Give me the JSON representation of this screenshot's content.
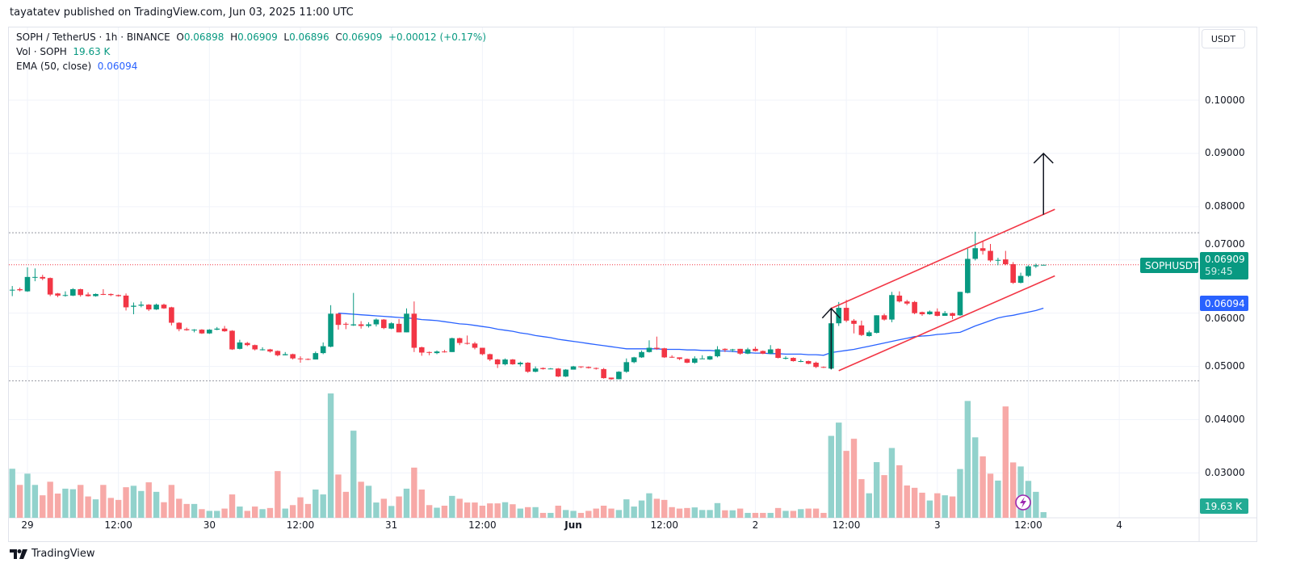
{
  "header": {
    "publisher_line": "tayatatev published on TradingView.com, Jun 03, 2025 11:00 UTC"
  },
  "legend": {
    "symbol": "SOPH / TetherUS · 1h · BINANCE",
    "o_label": "O",
    "o": "0.06898",
    "h_label": "H",
    "h": "0.06909",
    "l_label": "L",
    "l": "0.06896",
    "c_label": "C",
    "c": "0.06909",
    "change": "+0.00012 (+0.17%)",
    "vol_label": "Vol · SOPH",
    "vol": "19.63 K",
    "ema_label": "EMA (50, close)",
    "ema": "0.06094"
  },
  "currency_button": "USDT",
  "tags": {
    "symbol": "SOPHUSDT",
    "last_price": "0.06909",
    "countdown": "59:45",
    "ema_value": "0.06094",
    "volume": "19.63 K"
  },
  "footer": {
    "logo_text": "TradingView"
  },
  "colors": {
    "up": "#089981",
    "down": "#f23645",
    "volume_up": "#92d2cc",
    "volume_down": "#f7a9a7",
    "ema": "#2962ff",
    "channel": "#f23645",
    "arrow": "#131722",
    "level_line": "#9598a1",
    "price_line": "#f23645",
    "grid": "#f0f3fa",
    "alert_icon": "#9c27b0"
  },
  "chart_data": {
    "type": "candlestick",
    "interval": "1h",
    "x_ticks": [
      "29",
      "12:00",
      "30",
      "12:00",
      "31",
      "12:00",
      "Jun",
      "12:00",
      "2",
      "12:00",
      "3",
      "12:00",
      "4"
    ],
    "y_ticks": [
      "0.10000",
      "0.09000",
      "0.08000",
      "0.07000",
      "0.06000",
      "0.05000",
      "0.04000",
      "0.03000"
    ],
    "y_tick_values": [
      0.1,
      0.09,
      0.08,
      0.07,
      0.06,
      0.05,
      0.04,
      0.03
    ],
    "ylim": [
      0.025,
      0.105
    ],
    "grid": true,
    "ohlc": [
      [
        0.0643,
        0.0651,
        0.0632,
        0.0644
      ],
      [
        0.0645,
        0.0648,
        0.0641,
        0.0643
      ],
      [
        0.0641,
        0.0686,
        0.064,
        0.0668
      ],
      [
        0.0667,
        0.0684,
        0.066,
        0.0668
      ],
      [
        0.0668,
        0.0672,
        0.0662,
        0.0665
      ],
      [
        0.0666,
        0.0667,
        0.0632,
        0.0635
      ],
      [
        0.0637,
        0.0638,
        0.063,
        0.0633
      ],
      [
        0.0633,
        0.0641,
        0.0631,
        0.0634
      ],
      [
        0.0633,
        0.0647,
        0.0632,
        0.0645
      ],
      [
        0.0645,
        0.0646,
        0.0631,
        0.0634
      ],
      [
        0.0635,
        0.0639,
        0.0631,
        0.0632
      ],
      [
        0.0632,
        0.0637,
        0.0631,
        0.0636
      ],
      [
        0.0636,
        0.0645,
        0.0634,
        0.0635
      ],
      [
        0.0636,
        0.0637,
        0.0632,
        0.0634
      ],
      [
        0.0634,
        0.0635,
        0.0631,
        0.0632
      ],
      [
        0.0633,
        0.0637,
        0.0605,
        0.0611
      ],
      [
        0.0612,
        0.062,
        0.0598,
        0.0614
      ],
      [
        0.0614,
        0.0622,
        0.0611,
        0.0616
      ],
      [
        0.0616,
        0.0617,
        0.0604,
        0.0607
      ],
      [
        0.0607,
        0.0618,
        0.0606,
        0.0616
      ],
      [
        0.0616,
        0.0618,
        0.0608,
        0.0609
      ],
      [
        0.0611,
        0.0612,
        0.0577,
        0.0582
      ],
      [
        0.0582,
        0.0583,
        0.0566,
        0.057
      ],
      [
        0.057,
        0.0573,
        0.0567,
        0.0568
      ],
      [
        0.0568,
        0.057,
        0.0564,
        0.0569
      ],
      [
        0.0569,
        0.057,
        0.0561,
        0.0562
      ],
      [
        0.0562,
        0.057,
        0.0561,
        0.0569
      ],
      [
        0.0569,
        0.0574,
        0.0568,
        0.0571
      ],
      [
        0.0571,
        0.0576,
        0.0565,
        0.0566
      ],
      [
        0.0567,
        0.0568,
        0.0531,
        0.0532
      ],
      [
        0.0533,
        0.055,
        0.0532,
        0.0545
      ],
      [
        0.0544,
        0.0546,
        0.0538,
        0.054
      ],
      [
        0.054,
        0.0541,
        0.053,
        0.0532
      ],
      [
        0.0531,
        0.0536,
        0.053,
        0.0532
      ],
      [
        0.0532,
        0.0533,
        0.0526,
        0.0528
      ],
      [
        0.0529,
        0.053,
        0.0519,
        0.0521
      ],
      [
        0.0521,
        0.0527,
        0.0521,
        0.0523
      ],
      [
        0.0523,
        0.0524,
        0.0513,
        0.0515
      ],
      [
        0.0515,
        0.0519,
        0.0507,
        0.0514
      ],
      [
        0.0514,
        0.0515,
        0.0512,
        0.0513
      ],
      [
        0.0513,
        0.0528,
        0.0513,
        0.0525
      ],
      [
        0.0525,
        0.0545,
        0.0523,
        0.0538
      ],
      [
        0.0537,
        0.0615,
        0.0536,
        0.0599
      ],
      [
        0.0599,
        0.06,
        0.0569,
        0.0578
      ],
      [
        0.058,
        0.0583,
        0.057,
        0.0579
      ],
      [
        0.0577,
        0.0638,
        0.0576,
        0.0579
      ],
      [
        0.0579,
        0.0585,
        0.0571,
        0.0576
      ],
      [
        0.0576,
        0.0583,
        0.0573,
        0.0579
      ],
      [
        0.0579,
        0.059,
        0.0575,
        0.0588
      ],
      [
        0.0588,
        0.0589,
        0.057,
        0.0572
      ],
      [
        0.0571,
        0.0583,
        0.057,
        0.0581
      ],
      [
        0.058,
        0.0589,
        0.0564,
        0.0564
      ],
      [
        0.0564,
        0.0609,
        0.0564,
        0.0599
      ],
      [
        0.0599,
        0.0622,
        0.0527,
        0.0535
      ],
      [
        0.0536,
        0.0537,
        0.052,
        0.0526
      ],
      [
        0.0527,
        0.0528,
        0.0521,
        0.0526
      ],
      [
        0.0525,
        0.053,
        0.0523,
        0.0528
      ],
      [
        0.0528,
        0.0531,
        0.0526,
        0.0527
      ],
      [
        0.0527,
        0.0554,
        0.0527,
        0.0553
      ],
      [
        0.0553,
        0.0554,
        0.054,
        0.0544
      ],
      [
        0.0544,
        0.0558,
        0.0541,
        0.0543
      ],
      [
        0.0543,
        0.0546,
        0.0532,
        0.0535
      ],
      [
        0.0535,
        0.0535,
        0.0521,
        0.0523
      ],
      [
        0.0523,
        0.0524,
        0.051,
        0.0513
      ],
      [
        0.0513,
        0.0514,
        0.0497,
        0.0504
      ],
      [
        0.0504,
        0.0515,
        0.0502,
        0.0513
      ],
      [
        0.0513,
        0.0514,
        0.0503,
        0.0504
      ],
      [
        0.0504,
        0.0509,
        0.05,
        0.0507
      ],
      [
        0.0507,
        0.0508,
        0.0488,
        0.049
      ],
      [
        0.049,
        0.05,
        0.0489,
        0.0496
      ],
      [
        0.0497,
        0.0498,
        0.0494,
        0.0495
      ],
      [
        0.0495,
        0.0497,
        0.0495,
        0.0496
      ],
      [
        0.0496,
        0.0497,
        0.048,
        0.0481
      ],
      [
        0.0481,
        0.0495,
        0.048,
        0.0494
      ],
      [
        0.0494,
        0.0501,
        0.0494,
        0.05
      ],
      [
        0.05,
        0.05,
        0.0497,
        0.0499
      ],
      [
        0.0499,
        0.05,
        0.0496,
        0.0497
      ],
      [
        0.0497,
        0.0498,
        0.0494,
        0.0496
      ],
      [
        0.0495,
        0.0497,
        0.0477,
        0.0478
      ],
      [
        0.0479,
        0.0479,
        0.0475,
        0.0476
      ],
      [
        0.0476,
        0.0491,
        0.0476,
        0.049
      ],
      [
        0.049,
        0.0515,
        0.0488,
        0.0508
      ],
      [
        0.0508,
        0.0518,
        0.0506,
        0.0517
      ],
      [
        0.0517,
        0.053,
        0.0516,
        0.0527
      ],
      [
        0.0527,
        0.0549,
        0.0526,
        0.0535
      ],
      [
        0.0535,
        0.0556,
        0.0531,
        0.0533
      ],
      [
        0.0534,
        0.0535,
        0.0516,
        0.0517
      ],
      [
        0.0518,
        0.0521,
        0.0516,
        0.0517
      ],
      [
        0.0517,
        0.0517,
        0.0512,
        0.0514
      ],
      [
        0.0514,
        0.0515,
        0.0506,
        0.0507
      ],
      [
        0.0507,
        0.0519,
        0.0505,
        0.0515
      ],
      [
        0.0515,
        0.0521,
        0.0514,
        0.0515
      ],
      [
        0.0513,
        0.052,
        0.0512,
        0.0519
      ],
      [
        0.0519,
        0.0538,
        0.0517,
        0.0532
      ],
      [
        0.0533,
        0.0534,
        0.0527,
        0.0531
      ],
      [
        0.0531,
        0.0533,
        0.0527,
        0.0532
      ],
      [
        0.0533,
        0.0533,
        0.0522,
        0.0524
      ],
      [
        0.0524,
        0.0535,
        0.0523,
        0.0532
      ],
      [
        0.0533,
        0.0537,
        0.0528,
        0.0529
      ],
      [
        0.0529,
        0.053,
        0.0523,
        0.0524
      ],
      [
        0.0524,
        0.054,
        0.0523,
        0.0532
      ],
      [
        0.0533,
        0.0534,
        0.0515,
        0.0516
      ],
      [
        0.0516,
        0.0519,
        0.0513,
        0.0516
      ],
      [
        0.0516,
        0.0517,
        0.0509,
        0.051
      ],
      [
        0.051,
        0.0513,
        0.0508,
        0.051
      ],
      [
        0.051,
        0.0511,
        0.0504,
        0.0505
      ],
      [
        0.0507,
        0.0509,
        0.0497,
        0.0499
      ],
      [
        0.0499,
        0.05,
        0.0497,
        0.0498
      ],
      [
        0.0496,
        0.0582,
        0.0494,
        0.0581
      ],
      [
        0.0581,
        0.0621,
        0.0576,
        0.061
      ],
      [
        0.061,
        0.0625,
        0.0583,
        0.0586
      ],
      [
        0.0586,
        0.0589,
        0.0562,
        0.058
      ],
      [
        0.0577,
        0.0586,
        0.0557,
        0.0559
      ],
      [
        0.0557,
        0.0567,
        0.0556,
        0.0564
      ],
      [
        0.0563,
        0.0596,
        0.0562,
        0.0596
      ],
      [
        0.0596,
        0.0599,
        0.0586,
        0.0588
      ],
      [
        0.0588,
        0.064,
        0.0583,
        0.0634
      ],
      [
        0.0633,
        0.0641,
        0.062,
        0.0622
      ],
      [
        0.0622,
        0.0625,
        0.0615,
        0.0618
      ],
      [
        0.0621,
        0.0623,
        0.0598,
        0.06
      ],
      [
        0.0602,
        0.0603,
        0.0595,
        0.0598
      ],
      [
        0.0598,
        0.0605,
        0.0597,
        0.0603
      ],
      [
        0.0603,
        0.0609,
        0.0594,
        0.0595
      ],
      [
        0.0595,
        0.0604,
        0.0595,
        0.06
      ],
      [
        0.06,
        0.0601,
        0.0589,
        0.0595
      ],
      [
        0.0596,
        0.064,
        0.0595,
        0.064
      ],
      [
        0.0638,
        0.0721,
        0.0637,
        0.0702
      ],
      [
        0.0702,
        0.0753,
        0.0699,
        0.0722
      ],
      [
        0.0722,
        0.0736,
        0.071,
        0.0717
      ],
      [
        0.0717,
        0.073,
        0.0696,
        0.0699
      ],
      [
        0.0699,
        0.0704,
        0.069,
        0.07
      ],
      [
        0.0701,
        0.0717,
        0.069,
        0.0692
      ],
      [
        0.0692,
        0.0696,
        0.0655,
        0.0657
      ],
      [
        0.0657,
        0.0676,
        0.0656,
        0.067
      ],
      [
        0.067,
        0.069,
        0.0668,
        0.0688
      ],
      [
        0.0688,
        0.0693,
        0.0685,
        0.069
      ],
      [
        0.06898,
        0.06909,
        0.06896,
        0.06909
      ]
    ],
    "volume_unit": "K",
    "volumes": [
      170,
      114,
      153,
      114,
      78,
      125,
      84,
      101,
      99,
      114,
      74,
      64,
      114,
      69,
      62,
      106,
      111,
      93,
      123,
      90,
      54,
      114,
      66,
      48,
      48,
      30,
      24,
      24,
      32,
      81,
      39,
      24,
      39,
      30,
      34,
      162,
      32,
      44,
      71,
      48,
      98,
      81,
      431,
      150,
      90,
      302,
      125,
      111,
      53,
      66,
      41,
      74,
      101,
      174,
      98,
      44,
      35,
      42,
      76,
      66,
      53,
      53,
      42,
      50,
      50,
      54,
      47,
      32,
      37,
      37,
      17,
      17,
      42,
      27,
      24,
      17,
      24,
      32,
      42,
      32,
      27,
      64,
      39,
      60,
      85,
      66,
      62,
      37,
      32,
      34,
      36,
      27,
      27,
      51,
      26,
      26,
      32,
      17,
      17,
      17,
      17,
      34,
      24,
      24,
      30,
      32,
      32,
      17,
      284,
      330,
      232,
      274,
      134,
      85,
      193,
      148,
      242,
      182,
      112,
      104,
      87,
      60,
      85,
      78,
      74,
      169,
      405,
      279,
      213,
      153,
      129,
      386,
      192,
      178,
      128,
      90,
      19.63
    ],
    "ema": {
      "label": "EMA (50, close)",
      "values": [
        null,
        null,
        null,
        null,
        null,
        null,
        null,
        null,
        null,
        null,
        null,
        null,
        null,
        null,
        null,
        null,
        null,
        null,
        null,
        null,
        null,
        null,
        null,
        null,
        null,
        null,
        null,
        null,
        null,
        null,
        null,
        null,
        null,
        null,
        null,
        null,
        null,
        null,
        null,
        null,
        null,
        null,
        null,
        0.06,
        0.0599,
        0.0598,
        0.0597,
        0.0596,
        0.0595,
        0.0594,
        0.0593,
        0.0592,
        0.0591,
        0.059,
        0.0588,
        0.0587,
        0.0586,
        0.0584,
        0.0582,
        0.058,
        0.0579,
        0.0577,
        0.0575,
        0.0573,
        0.057,
        0.0568,
        0.0566,
        0.0563,
        0.0561,
        0.0558,
        0.0556,
        0.0554,
        0.0551,
        0.0549,
        0.0547,
        0.0545,
        0.0543,
        0.0541,
        0.0539,
        0.0537,
        0.0535,
        0.0533,
        0.0533,
        0.0533,
        0.0533,
        0.0533,
        0.0532,
        0.0532,
        0.0532,
        0.0531,
        0.0531,
        0.053,
        0.053,
        0.0529,
        0.0529,
        0.0528,
        0.0527,
        0.0526,
        0.0525,
        0.0525,
        0.0524,
        0.0524,
        0.0523,
        0.0523,
        0.0523,
        0.0522,
        0.0522,
        0.0521,
        0.0526,
        0.0528,
        0.053,
        0.0532,
        0.0535,
        0.0538,
        0.0541,
        0.0544,
        0.0547,
        0.055,
        0.0553,
        0.0556,
        0.0557,
        0.0558,
        0.056,
        0.0561,
        0.0563,
        0.0564,
        0.057,
        0.0576,
        0.0581,
        0.0586,
        0.0591,
        0.0594,
        0.0596,
        0.0599,
        0.0602,
        0.0605,
        0.06094
      ]
    },
    "drawings": {
      "horizontal_levels": [
        0.0751,
        0.0473
      ],
      "last_price_line": 0.06909,
      "channel_upper": [
        [
          0.0609,
          0.0795
        ]
      ],
      "channel_lower": [
        [
          0.0492,
          0.067
        ]
      ],
      "small_arrow": {
        "from": 0.0495,
        "to": 0.0609
      },
      "target_arrow": {
        "from": 0.0785,
        "to": 0.09
      }
    }
  }
}
